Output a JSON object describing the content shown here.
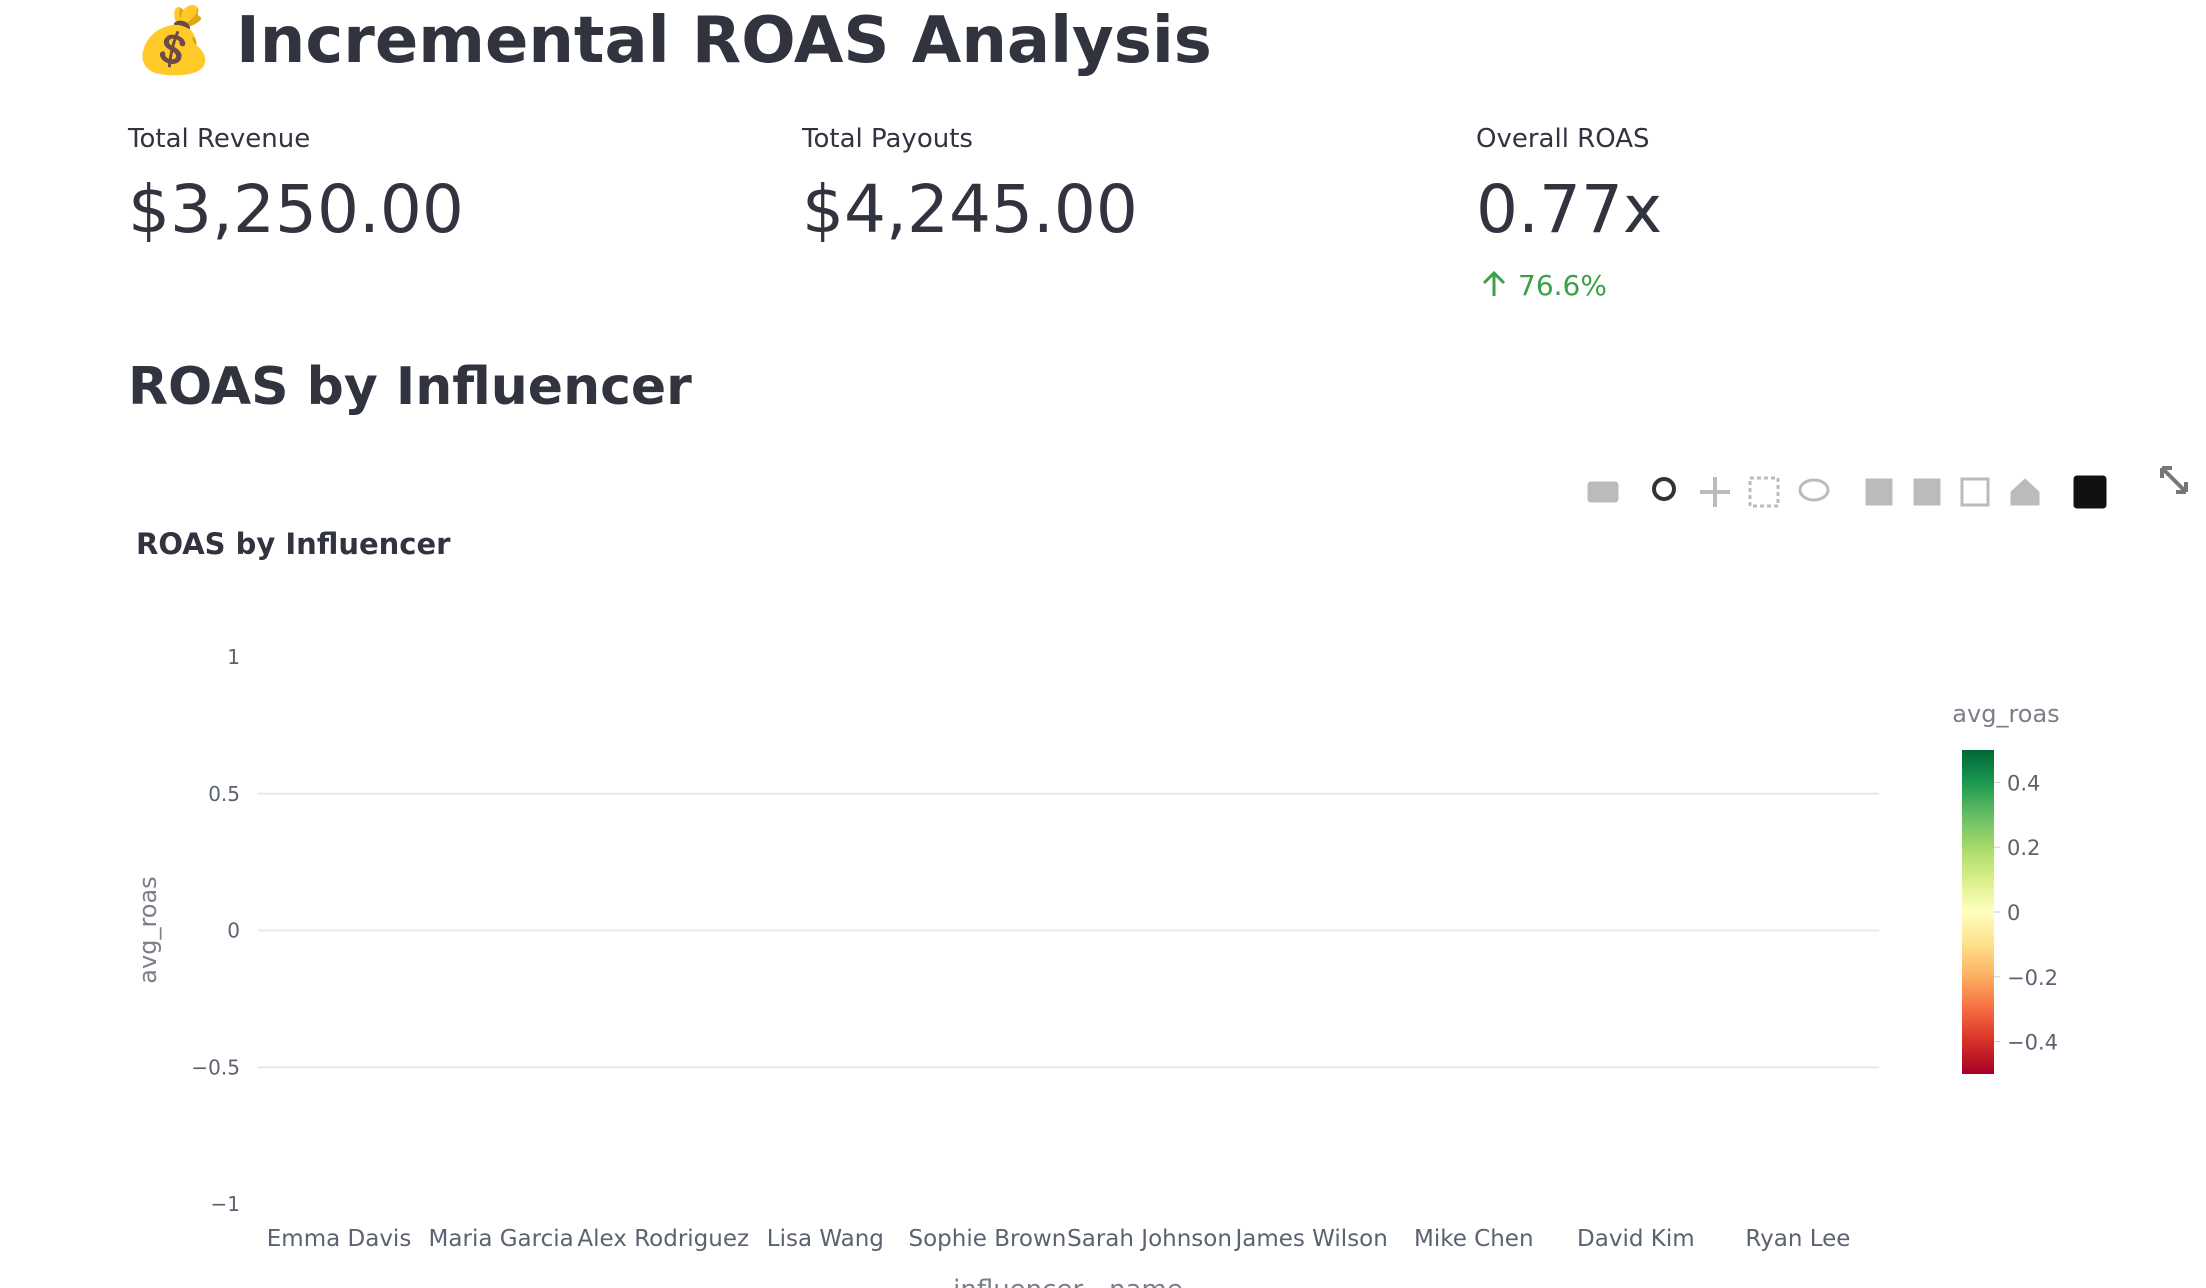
{
  "header": {
    "title": "💰 Incremental ROAS Analysis"
  },
  "metrics": [
    {
      "label": "Total Revenue",
      "value": "$3,250.00"
    },
    {
      "label": "Total Payouts",
      "value": "$4,245.00"
    },
    {
      "label": "Overall ROAS",
      "value": "0.77x",
      "delta": "76.6%"
    }
  ],
  "section": {
    "title": "ROAS by Influencer"
  },
  "chart_data": {
    "type": "bar",
    "title": "ROAS by Influencer",
    "x_label": "influencer__name",
    "y_label": "avg_roas",
    "categories": [
      "Emma Davis",
      "Maria Garcia",
      "Alex Rodriguez",
      "Lisa Wang",
      "Sophie Brown",
      "Sarah Johnson",
      "James Wilson",
      "Mike Chen",
      "David Kim",
      "Ryan Lee"
    ],
    "values": [
      0,
      0,
      0,
      0,
      0,
      0,
      0,
      0,
      0,
      0
    ],
    "ylim": [
      -1,
      1
    ],
    "yticks": [
      1,
      0.5,
      0,
      {
        "value": -0.5,
        "label": "−0.5"
      },
      {
        "value": -1,
        "label": "−1"
      }
    ],
    "grid": true,
    "colorbar": {
      "title": "avg_roas",
      "clim": [
        -0.5,
        0.5
      ],
      "ticks": [
        0.4,
        0.2,
        0,
        {
          "value": -0.2,
          "label": "−0.2"
        },
        {
          "value": -0.4,
          "label": "−0.4"
        }
      ],
      "colorscale": [
        "#a50026",
        "#d73027",
        "#f46d43",
        "#fdae61",
        "#fee08b",
        "#ffffbf",
        "#d9ef8b",
        "#a6d96a",
        "#66bd63",
        "#1a9850",
        "#006837"
      ]
    }
  }
}
